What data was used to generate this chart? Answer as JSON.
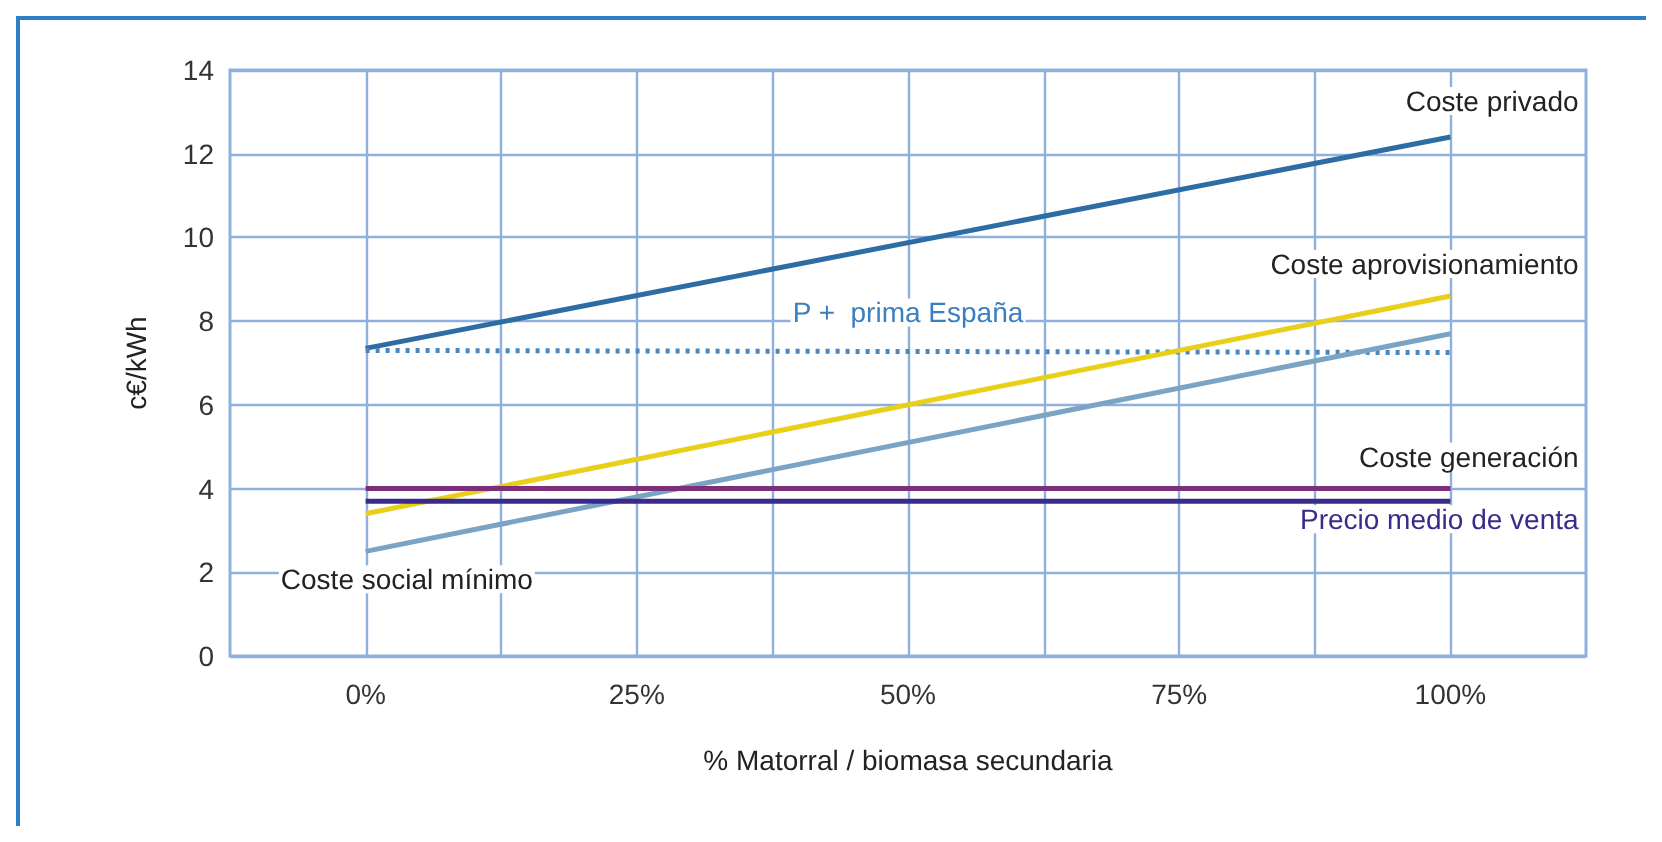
{
  "chart_data": {
    "type": "line",
    "xlabel": "% Matorral / biomasa secundaria",
    "ylabel": "c€/kWh",
    "x": [
      0,
      100
    ],
    "series": [
      {
        "name": "Coste privado",
        "color": "#2e6da4",
        "values": [
          7.35,
          12.4
        ]
      },
      {
        "name": "P +  prima España",
        "color": "#4a86bf",
        "values": [
          7.3,
          7.25
        ],
        "line_style": "dotted"
      },
      {
        "name": "Coste aprovisionamiento",
        "color": "#e8cf1a",
        "values": [
          3.4,
          8.6
        ]
      },
      {
        "name": "Coste social mínimo",
        "color": "#7ba3c3",
        "values": [
          2.5,
          7.7
        ]
      },
      {
        "name": "Coste generación",
        "color": "#7a2f78",
        "values": [
          4.0,
          4.0
        ]
      },
      {
        "name": "Precio medio de venta",
        "color": "#3a2a8c",
        "values": [
          3.7,
          3.7
        ]
      }
    ],
    "xlim": [
      -12.5,
      112.5
    ],
    "xticks": [
      {
        "value": 0,
        "label": "0%"
      },
      {
        "value": 12.5,
        "label": null
      },
      {
        "value": 25,
        "label": "25%"
      },
      {
        "value": 37.5,
        "label": null
      },
      {
        "value": 50,
        "label": "50%"
      },
      {
        "value": 62.5,
        "label": null
      },
      {
        "value": 75,
        "label": "75%"
      },
      {
        "value": 87.5,
        "label": null
      },
      {
        "value": 100,
        "label": "100%"
      }
    ],
    "ylim": [
      0,
      14
    ],
    "yticks": [
      0,
      2,
      4,
      6,
      8,
      10,
      12,
      14
    ],
    "grid": true,
    "legend": false,
    "marker": "none",
    "line_style": "solid"
  }
}
